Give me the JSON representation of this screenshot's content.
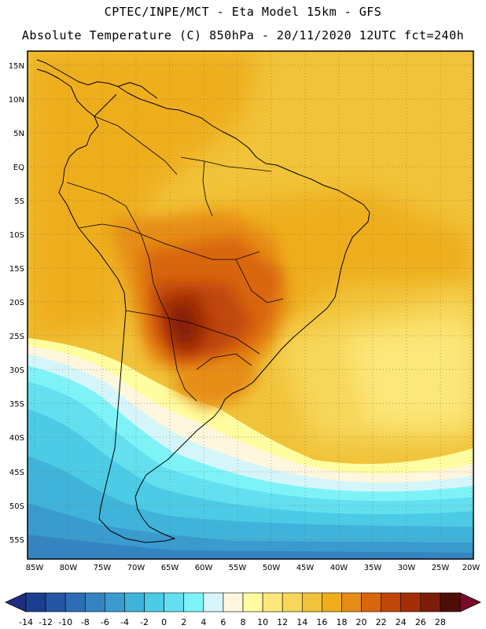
{
  "header": {
    "line1": "CPTEC/INPE/MCT -  Eta Model 15km - GFS",
    "line2": "Absolute Temperature (C) 850hPa - 20/11/2020 12UTC fct=240h"
  },
  "map": {
    "lat_labels": [
      "15N",
      "10N",
      "5N",
      "EQ",
      "5S",
      "10S",
      "15S",
      "20S",
      "25S",
      "30S",
      "35S",
      "40S",
      "45S",
      "50S",
      "55S"
    ],
    "lon_labels": [
      "85W",
      "80W",
      "75W",
      "70W",
      "65W",
      "60W",
      "55W",
      "50W",
      "45W",
      "40W",
      "35W",
      "30W",
      "25W",
      "20W"
    ]
  },
  "colorbar": {
    "ticks": [
      "-14",
      "-12",
      "-10",
      "-8",
      "-6",
      "-4",
      "-2",
      "0",
      "2",
      "4",
      "6",
      "8",
      "10",
      "12",
      "14",
      "16",
      "18",
      "20",
      "22",
      "24",
      "26",
      "28"
    ],
    "colors": [
      "#1b3f8f",
      "#2456a3",
      "#2c6db5",
      "#3484c2",
      "#3a9bcf",
      "#40b3da",
      "#4ccbe6",
      "#63dff0",
      "#7df3f8",
      "#d4f6fa",
      "#fff6de",
      "#fffda0",
      "#fce77a",
      "#f7d75a",
      "#f1c33a",
      "#eeae1c",
      "#e68d17",
      "#d9650e",
      "#c04609",
      "#a32e06",
      "#7e1d07",
      "#4e0d06"
    ],
    "low_color": "#1f2e80",
    "high_color": "#7a0a2a"
  }
}
